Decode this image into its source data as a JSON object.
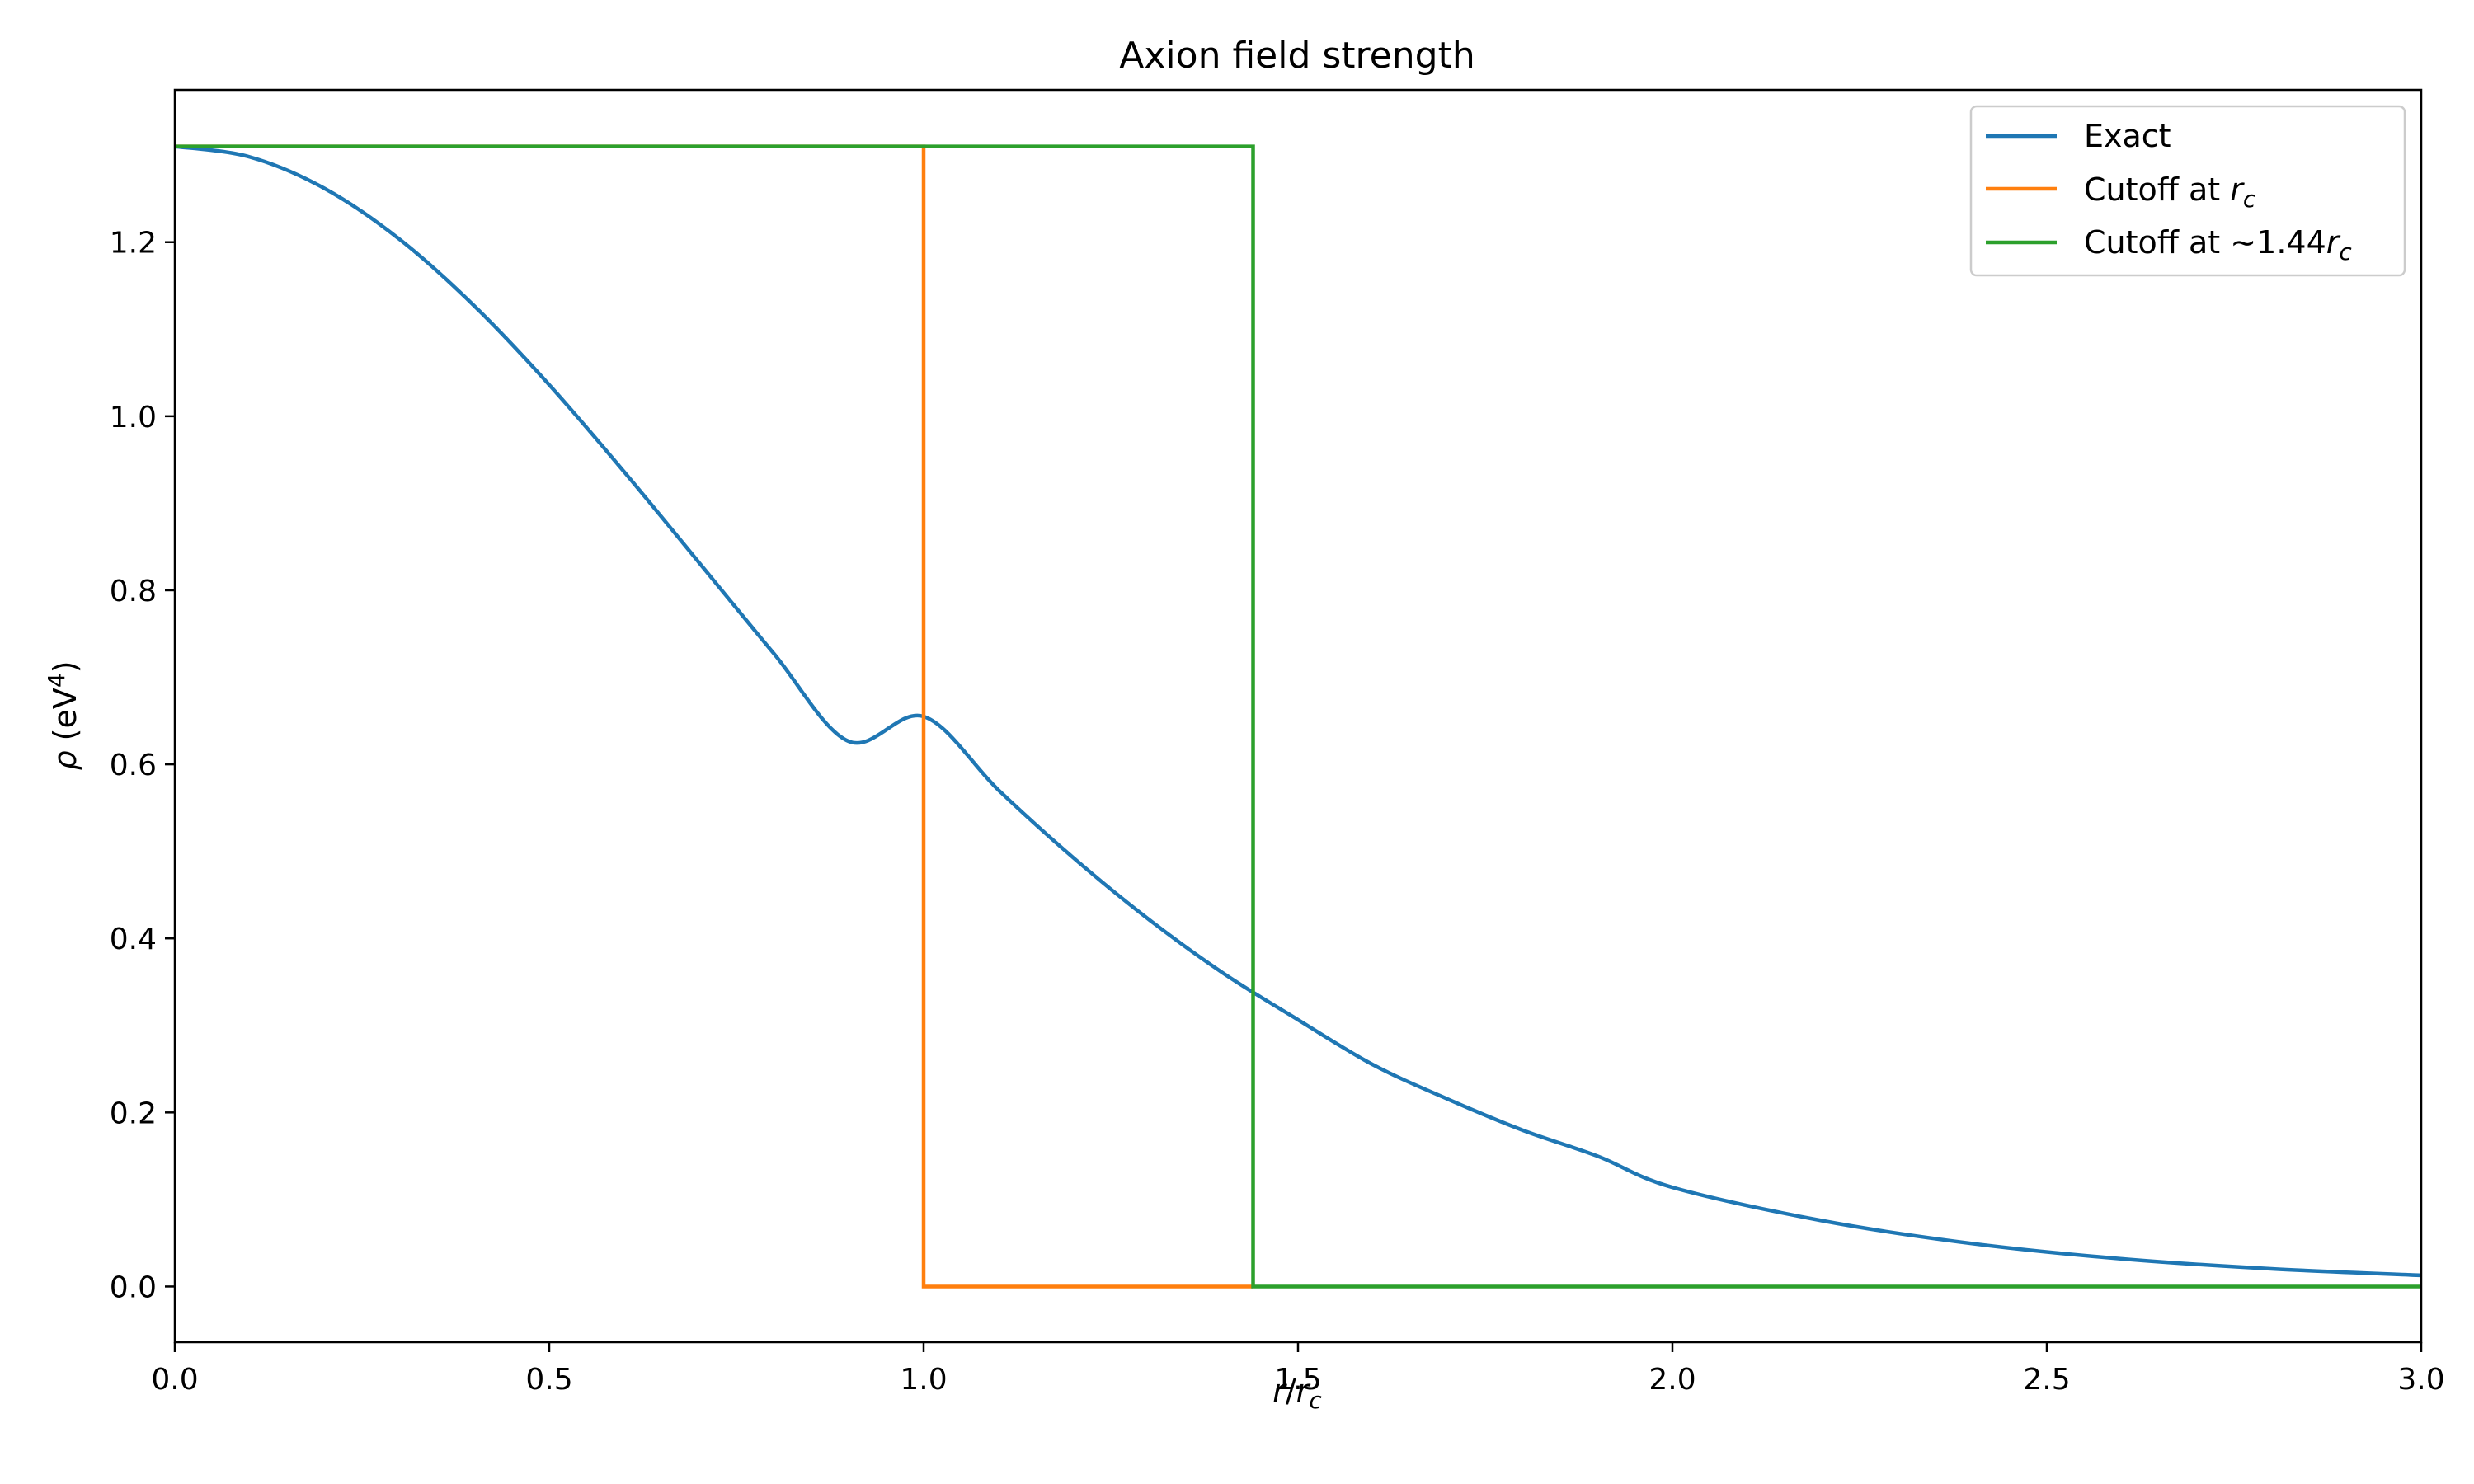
{
  "chart_data": {
    "type": "line",
    "title": "Axion field strength",
    "xlabel": {
      "base": "r",
      "slash": "/",
      "sub_var": "r",
      "sub": "c"
    },
    "ylabel": {
      "rho": "ρ",
      "open": " (eV",
      "sup": "4",
      "close": ")"
    },
    "xlim": [
      0.0,
      3.0
    ],
    "ylim": [
      -0.064,
      1.375
    ],
    "xticks": [
      0.0,
      0.5,
      1.0,
      1.5,
      2.0,
      2.5,
      3.0
    ],
    "xtick_labels": [
      "0.0",
      "0.5",
      "1.0",
      "1.5",
      "2.0",
      "2.5",
      "3.0"
    ],
    "yticks": [
      0.0,
      0.2,
      0.4,
      0.6,
      0.8,
      1.0,
      1.2
    ],
    "ytick_labels": [
      "0.0",
      "0.2",
      "0.4",
      "0.6",
      "0.8",
      "1.0",
      "1.2"
    ],
    "grid": false,
    "legend_position": "top-right",
    "series": [
      {
        "name": "Exact",
        "legend": {
          "prefix": "Exact"
        },
        "color": "#1f77b4",
        "x": [
          0.0,
          0.1,
          0.2,
          0.3,
          0.4,
          0.5,
          0.6,
          0.7,
          0.8,
          0.9,
          1.0,
          1.1,
          1.2,
          1.3,
          1.4,
          1.5,
          1.6,
          1.7,
          1.8,
          1.9,
          2.0,
          2.2,
          2.4,
          2.6,
          2.8,
          3.0
        ],
        "y": [
          1.31,
          1.2979,
          1.2617,
          1.2034,
          1.1267,
          1.0361,
          0.9362,
          0.8319,
          0.7273,
          0.6264,
          0.655,
          0.5704,
          0.4926,
          0.4223,
          0.3601,
          0.3065,
          0.2549,
          0.2153,
          0.1796,
          0.1498,
          0.1139,
          0.0756,
          0.0494,
          0.0318,
          0.0203,
          0.0128
        ]
      },
      {
        "name": "Cutoff at r_c",
        "legend": {
          "prefix": "Cutoff at ",
          "var": "r",
          "sub": "c"
        },
        "color": "#ff7f0e",
        "x": [
          0.0,
          1.0,
          1.0,
          1.44
        ],
        "y": [
          1.31,
          1.31,
          0.0,
          0.0
        ]
      },
      {
        "name": "Cutoff at ~1.44r_c",
        "legend": {
          "prefix": "Cutoff at ",
          "tilde": "∼",
          "num": "1.44",
          "var": "r",
          "sub": "c"
        },
        "color": "#2ca02c",
        "x": [
          0.0,
          1.44,
          1.44,
          3.0
        ],
        "y": [
          1.31,
          1.31,
          0.0,
          0.0
        ]
      }
    ]
  }
}
